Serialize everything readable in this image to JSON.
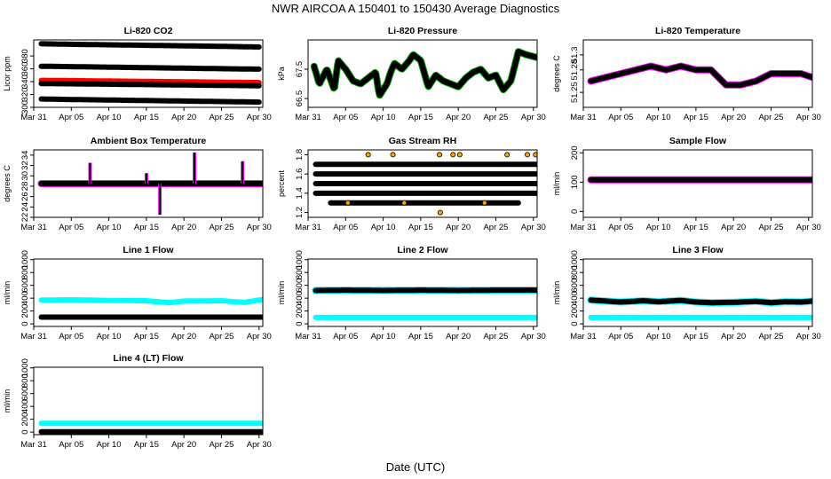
{
  "figure": {
    "title": "NWR   AIRCOA A   150401 to 150430   Average Diagnostics",
    "xlabel": "Date (UTC)"
  },
  "colors": {
    "black": "#000000",
    "red": "#ff0000",
    "magenta": "#ff00ff",
    "green": "#00a000",
    "cyan": "#00ffff",
    "orange": "#ffa500"
  },
  "x_axis": {
    "range": [
      0,
      30.5
    ],
    "tick_labels": [
      "Mar 31",
      "Apr 05",
      "Apr 10",
      "Apr 15",
      "Apr 20",
      "Apr 25",
      "Apr 30"
    ],
    "tick_days": [
      0,
      5,
      10,
      15,
      20,
      25,
      30
    ]
  },
  "chart_data": [
    {
      "id": "licor-co2",
      "type": "scatter",
      "title": "Li-820 CO2",
      "ylabel": "Licor ppm",
      "ylim": [
        300,
        405
      ],
      "yticks": [
        300,
        320,
        340,
        360,
        380
      ],
      "series": [
        {
          "name": "band-1",
          "color": "black",
          "x": [
            1,
            5,
            10,
            15,
            20,
            25,
            30
          ],
          "y": [
            399,
            398.2,
            397.4,
            396.6,
            395.8,
            395,
            394
          ]
        },
        {
          "name": "band-2",
          "color": "black",
          "x": [
            1,
            5,
            10,
            15,
            20,
            25,
            30
          ],
          "y": [
            364,
            363.4,
            362.6,
            361.8,
            361,
            360.2,
            359.5
          ]
        },
        {
          "name": "band-3",
          "color": "red",
          "x": [
            1,
            5,
            10,
            15,
            20,
            25,
            30
          ],
          "y": [
            342,
            341.6,
            341,
            340.4,
            339.8,
            339.2,
            338.6
          ]
        },
        {
          "name": "band-4",
          "color": "black",
          "x": [
            1,
            5,
            10,
            15,
            20,
            25,
            30
          ],
          "y": [
            337,
            336.6,
            336,
            335.4,
            334.8,
            334.2,
            333.6
          ]
        },
        {
          "name": "band-5",
          "color": "black",
          "x": [
            1,
            5,
            10,
            15,
            20,
            25,
            30
          ],
          "y": [
            313,
            312.2,
            311.4,
            310.6,
            309.8,
            309,
            308.2
          ]
        }
      ]
    },
    {
      "id": "licor-pressure",
      "type": "line",
      "title": "Li-820 Pressure",
      "ylabel": "kPa",
      "ylim": [
        66.2,
        68.5
      ],
      "yticks": [
        66.5,
        67.5
      ],
      "series": [
        {
          "name": "pressure",
          "color": "black",
          "outline": "green",
          "x": [
            0.8,
            1.5,
            2.5,
            3.5,
            4,
            5,
            6,
            7,
            8,
            9,
            9.5,
            10.5,
            11,
            11.5,
            12.5,
            13.5,
            14,
            15,
            16,
            17,
            18,
            19,
            20,
            21,
            22,
            23,
            24,
            25,
            26,
            27,
            28,
            29,
            30.5
          ],
          "y": [
            67.6,
            67.0,
            67.5,
            66.8,
            67.8,
            67.5,
            67.1,
            67.0,
            67.2,
            67.4,
            66.6,
            67.0,
            67.4,
            67.7,
            67.5,
            67.8,
            68.0,
            67.8,
            66.9,
            67.3,
            67.1,
            67.0,
            66.9,
            67.2,
            67.4,
            67.5,
            67.2,
            67.3,
            66.8,
            67.1,
            68.1,
            68.0,
            67.9
          ]
        }
      ]
    },
    {
      "id": "licor-temperature",
      "type": "scatter",
      "title": "Li-820 Temperature",
      "ylabel": "degrees C",
      "ylim": [
        51.23,
        51.32
      ],
      "yticks": [
        51.25,
        51.28,
        51.3
      ],
      "series": [
        {
          "name": "temperature",
          "color": "black",
          "outline": "magenta",
          "x": [
            1,
            3,
            5,
            7,
            9,
            11,
            13,
            15,
            17,
            19,
            21,
            23,
            25,
            27,
            29,
            30.5
          ],
          "y": [
            51.265,
            51.27,
            51.275,
            51.28,
            51.285,
            51.28,
            51.285,
            51.28,
            51.28,
            51.26,
            51.26,
            51.265,
            51.275,
            51.275,
            51.275,
            51.27
          ]
        }
      ]
    },
    {
      "id": "ambient-box-temperature",
      "type": "scatter",
      "title": "Ambient Box Temperature",
      "ylabel": "degrees C",
      "ylim": [
        22,
        35
      ],
      "yticks": [
        22,
        24,
        26,
        28,
        30,
        32,
        34
      ],
      "series": [
        {
          "name": "box-temperature",
          "color": "black",
          "outline": "magenta",
          "x": [
            1,
            5,
            10,
            15,
            20,
            25,
            30.5
          ],
          "y": [
            28.5,
            28.5,
            28.5,
            28.5,
            28.5,
            28.5,
            28.5
          ]
        }
      ],
      "spikes": [
        {
          "x": 7.5,
          "y": 32.5
        },
        {
          "x": 15,
          "y": 30.5
        },
        {
          "x": 16.8,
          "y": 22.5
        },
        {
          "x": 21.4,
          "y": 34.5
        },
        {
          "x": 27.8,
          "y": 32.8
        }
      ]
    },
    {
      "id": "gas-stream-rh",
      "type": "scatter",
      "title": "Gas Stream RH",
      "ylabel": "percent",
      "ylim": [
        1.15,
        1.85
      ],
      "yticks": [
        1.2,
        1.4,
        1.6,
        1.8
      ],
      "series": [
        {
          "name": "rh-1.5",
          "color": "black",
          "x": [
            1,
            30.5
          ],
          "y": [
            1.5,
            1.5
          ]
        },
        {
          "name": "rh-1.6",
          "color": "black",
          "x": [
            1,
            30.5
          ],
          "y": [
            1.6,
            1.6
          ]
        },
        {
          "name": "rh-1.4",
          "color": "black",
          "x": [
            1,
            30.5
          ],
          "y": [
            1.4,
            1.4
          ]
        },
        {
          "name": "rh-1.7",
          "color": "black",
          "x": [
            1,
            30.5
          ],
          "y": [
            1.7,
            1.7
          ]
        },
        {
          "name": "rh-1.3",
          "color": "black",
          "x": [
            3,
            28
          ],
          "y": [
            1.3,
            1.3
          ]
        }
      ],
      "outliers": [
        {
          "x": 8,
          "y": 1.8
        },
        {
          "x": 11.3,
          "y": 1.8
        },
        {
          "x": 17.5,
          "y": 1.8
        },
        {
          "x": 19.3,
          "y": 1.8
        },
        {
          "x": 20.2,
          "y": 1.8
        },
        {
          "x": 26.5,
          "y": 1.8
        },
        {
          "x": 29.2,
          "y": 1.8
        },
        {
          "x": 30.3,
          "y": 1.8
        },
        {
          "x": 17.6,
          "y": 1.2
        },
        {
          "x": 12.8,
          "y": 1.3
        },
        {
          "x": 23.5,
          "y": 1.3
        },
        {
          "x": 5.3,
          "y": 1.3
        }
      ]
    },
    {
      "id": "sample-flow",
      "type": "scatter",
      "title": "Sample Flow",
      "ylabel": "ml/min",
      "ylim": [
        -20,
        210
      ],
      "yticks": [
        0,
        100,
        200
      ],
      "series": [
        {
          "name": "sample-flow",
          "color": "black",
          "outline": "magenta",
          "x": [
            1,
            30.5
          ],
          "y": [
            108,
            108
          ]
        }
      ]
    },
    {
      "id": "line-1-flow",
      "type": "scatter",
      "title": "Line 1 Flow",
      "ylabel": "ml/min",
      "ylim": [
        -40,
        1010
      ],
      "yticks": [
        0,
        200,
        400,
        600,
        800,
        1000
      ],
      "series": [
        {
          "name": "line-flow",
          "color": "cyan",
          "x": [
            1,
            5,
            10,
            15,
            18,
            20,
            25,
            28,
            30.5
          ],
          "y": [
            370,
            375,
            365,
            360,
            330,
            355,
            360,
            335,
            380
          ]
        },
        {
          "name": "reference",
          "color": "black",
          "x": [
            1,
            30.5
          ],
          "y": [
            105,
            105
          ]
        }
      ]
    },
    {
      "id": "line-2-flow",
      "type": "scatter",
      "title": "Line 2 Flow",
      "ylabel": "ml/min",
      "ylim": [
        -40,
        1010
      ],
      "yticks": [
        0,
        200,
        400,
        600,
        800,
        1000
      ],
      "series": [
        {
          "name": "line-flow",
          "color": "black",
          "outline": "cyan",
          "x": [
            1,
            5,
            10,
            15,
            20,
            25,
            30.5
          ],
          "y": [
            520,
            525,
            520,
            525,
            520,
            525,
            525
          ]
        },
        {
          "name": "reference",
          "color": "cyan",
          "x": [
            1,
            30.5
          ],
          "y": [
            100,
            100
          ]
        }
      ]
    },
    {
      "id": "line-3-flow",
      "type": "scatter",
      "title": "Line 3 Flow",
      "ylabel": "ml/min",
      "ylim": [
        -40,
        1010
      ],
      "yticks": [
        0,
        200,
        400,
        600,
        800,
        1000
      ],
      "series": [
        {
          "name": "line-flow",
          "color": "black",
          "outline": "cyan",
          "x": [
            1,
            3,
            5,
            8,
            10,
            13,
            15,
            17,
            20,
            23,
            25,
            27,
            29,
            30.5
          ],
          "y": [
            370,
            355,
            340,
            360,
            345,
            365,
            340,
            330,
            335,
            350,
            330,
            345,
            340,
            355
          ]
        },
        {
          "name": "reference",
          "color": "cyan",
          "x": [
            1,
            30.5
          ],
          "y": [
            100,
            100
          ]
        }
      ]
    },
    {
      "id": "line-4-flow",
      "type": "scatter",
      "title": "Line 4 (LT) Flow",
      "ylabel": "ml/min",
      "ylim": [
        -40,
        1010
      ],
      "yticks": [
        0,
        200,
        400,
        600,
        800,
        1000
      ],
      "series": [
        {
          "name": "line-flow",
          "color": "cyan",
          "x": [
            1,
            30.5
          ],
          "y": [
            135,
            135
          ]
        },
        {
          "name": "reference",
          "color": "black",
          "x": [
            1,
            30.5
          ],
          "y": [
            5,
            5
          ]
        }
      ]
    }
  ]
}
